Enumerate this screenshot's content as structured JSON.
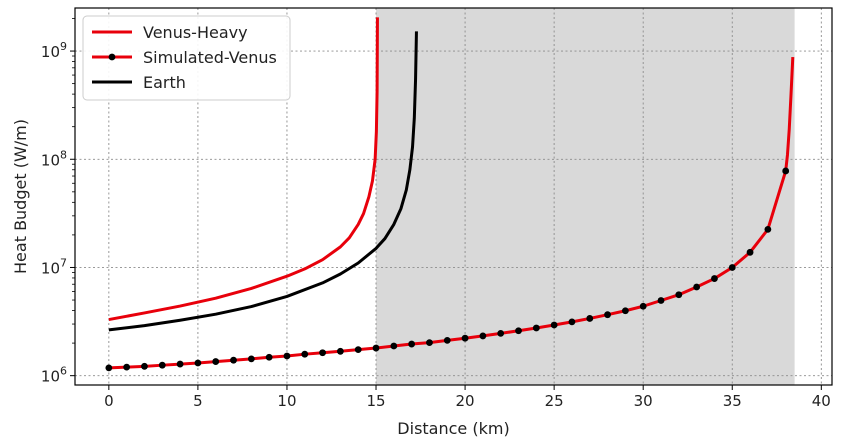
{
  "chart_data": {
    "type": "line",
    "title": "",
    "xlabel": "Distance (km)",
    "ylabel": "Heat Budget (W/m)",
    "xlim": [
      -1.9,
      40.6
    ],
    "ylim": [
      820000,
      2500000000
    ],
    "yscale": "log",
    "grid": true,
    "legend_position": "top-left",
    "x_ticks": [
      0,
      5,
      10,
      15,
      20,
      25,
      30,
      35,
      40
    ],
    "x_tick_labels": [
      "0",
      "5",
      "10",
      "15",
      "20",
      "25",
      "30",
      "35",
      "40"
    ],
    "y_ticks": [
      1000000,
      10000000,
      100000000,
      1000000000
    ],
    "y_tick_labels": [
      {
        "base": "10",
        "exp": "6"
      },
      {
        "base": "10",
        "exp": "7"
      },
      {
        "base": "10",
        "exp": "8"
      },
      {
        "base": "10",
        "exp": "9"
      }
    ],
    "shaded_region": {
      "x_start": 15,
      "x_end": 38.5,
      "color": "#d9d9d9"
    },
    "series": [
      {
        "name": "Venus-Heavy",
        "color": "#e8000b",
        "marker": "none",
        "x": [
          0,
          2,
          4,
          6,
          8,
          10,
          11,
          12,
          13,
          13.5,
          14,
          14.3,
          14.6,
          14.8,
          14.95,
          15.02,
          15.06,
          15.08
        ],
        "y": [
          3300000,
          3800000,
          4400000,
          5200000,
          6400000,
          8300000,
          9700000,
          11800000,
          15500000,
          18800000,
          25000000,
          31500000,
          45000000,
          63000000,
          100000000,
          180000000,
          420000000,
          2050000000
        ]
      },
      {
        "name": "Simulated-Venus",
        "color": "#e8000b",
        "marker": "circle",
        "marker_color": "#000000",
        "x": [
          0,
          1,
          2,
          3,
          4,
          5,
          6,
          7,
          8,
          9,
          10,
          11,
          12,
          13,
          14,
          15,
          16,
          17,
          18,
          19,
          20,
          21,
          22,
          23,
          24,
          25,
          26,
          27,
          28,
          29,
          30,
          31,
          32,
          33,
          34,
          35,
          36,
          37,
          38
        ],
        "y": [
          1180000,
          1200000,
          1220000,
          1250000,
          1280000,
          1310000,
          1350000,
          1390000,
          1430000,
          1480000,
          1520000,
          1580000,
          1630000,
          1680000,
          1740000,
          1800000,
          1880000,
          1960000,
          2020000,
          2120000,
          2220000,
          2330000,
          2460000,
          2600000,
          2760000,
          2940000,
          3140000,
          3380000,
          3660000,
          3980000,
          4380000,
          4950000,
          5600000,
          6600000,
          7900000,
          10000000,
          13800000,
          22500000,
          78000000
        ],
        "tail_x": [
          38.1,
          38.2,
          38.3,
          38.4
        ],
        "tail_y": [
          110000000,
          190000000,
          400000000,
          880000000
        ]
      },
      {
        "name": "Earth",
        "color": "#000000",
        "marker": "none",
        "x": [
          0,
          2,
          4,
          6,
          8,
          10,
          12,
          13,
          14,
          15,
          15.5,
          16,
          16.4,
          16.7,
          16.9,
          17.05,
          17.15,
          17.22,
          17.27
        ],
        "y": [
          2650000,
          2900000,
          3250000,
          3700000,
          4350000,
          5400000,
          7200000,
          8700000,
          11000000,
          15000000,
          18500000,
          25000000,
          35000000,
          52000000,
          80000000,
          130000000,
          240000000,
          550000000,
          1520000000
        ]
      }
    ]
  }
}
